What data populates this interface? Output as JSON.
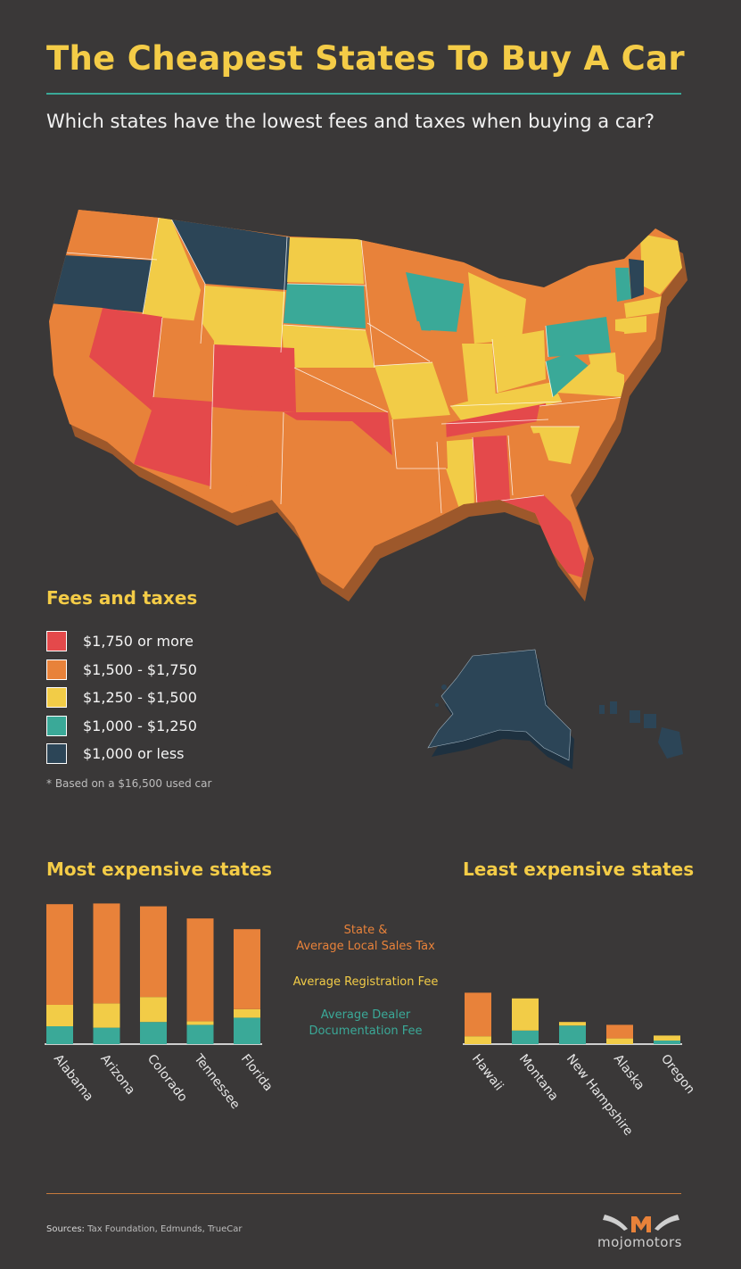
{
  "title": "The Cheapest States To Buy A Car",
  "subtitle": "Which states have the lowest fees and taxes when buying a car?",
  "colors": {
    "red": "#e4494b",
    "orange": "#e8823a",
    "yellow": "#f2cc47",
    "teal": "#3aa998",
    "navy": "#2c4557",
    "sales_tax": "#e8823a",
    "registration": "#f2cc47",
    "documentation": "#3aa998"
  },
  "legend": {
    "title": "Fees and taxes",
    "items": [
      {
        "label": "$1,750 or more",
        "color": "#e4494b"
      },
      {
        "label": "$1,500 - $1,750",
        "color": "#e8823a"
      },
      {
        "label": "$1,250 - $1,500",
        "color": "#f2cc47"
      },
      {
        "label": "$1,000 - $1,250",
        "color": "#3aa998"
      },
      {
        "label": "$1,000 or less",
        "color": "#2c4557"
      }
    ],
    "footnote": "* Based on a $16,500 used car"
  },
  "key": {
    "sales_tax": "State &\nAverage Local Sales Tax",
    "registration": "Average Registration Fee",
    "documentation": "Average Dealer\nDocumentation Fee"
  },
  "chart_data": [
    {
      "type": "bar",
      "title": "Most expensive states",
      "stacked": true,
      "categories": [
        "Alabama",
        "Arizona",
        "Colorado",
        "Tennessee",
        "Florida"
      ],
      "series": [
        {
          "name": "Average Dealer Documentation Fee",
          "values": [
            250,
            230,
            310,
            270,
            370
          ]
        },
        {
          "name": "Average Registration Fee",
          "values": [
            300,
            340,
            350,
            50,
            120
          ]
        },
        {
          "name": "State & Average Local Sales Tax",
          "values": [
            1410,
            1400,
            1270,
            1440,
            1120
          ]
        }
      ],
      "ylim": [
        0,
        2000
      ]
    },
    {
      "type": "bar",
      "title": "Least expensive states",
      "stacked": true,
      "categories": [
        "Hawaii",
        "Montana",
        "New Hampshire",
        "Alaska",
        "Oregon"
      ],
      "series": [
        {
          "name": "Average Dealer Documentation Fee",
          "values": [
            0,
            190,
            260,
            0,
            50
          ]
        },
        {
          "name": "Average Registration Fee",
          "values": [
            110,
            450,
            50,
            80,
            70
          ]
        },
        {
          "name": "State & Average Local Sales Tax",
          "values": [
            610,
            0,
            0,
            190,
            0
          ]
        }
      ],
      "ylim": [
        0,
        2000
      ]
    }
  ],
  "sources": {
    "label": "Sources:",
    "text": "Tax Foundation, Edmunds, TrueCar"
  },
  "logo": {
    "text": "mojomotors"
  }
}
